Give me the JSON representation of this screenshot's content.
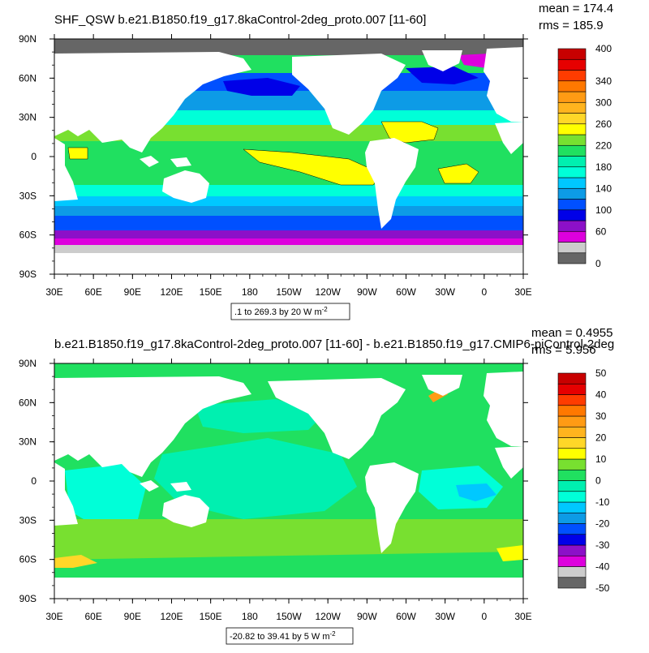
{
  "colors": {
    "land": "#ffffff",
    "ice": "#666666",
    "frame": "#000000",
    "top_palette": [
      "#666666",
      "#cccccc",
      "#dd00dd",
      "#8c10c8",
      "#0000e8",
      "#0050ff",
      "#0d9be6",
      "#00c8ff",
      "#00ffd8",
      "#00f0b0",
      "#20e060",
      "#78e030",
      "#ffff00",
      "#ffd728",
      "#ffb41e",
      "#ff9b14",
      "#ff7800",
      "#ff3c00",
      "#e60000",
      "#c80000"
    ],
    "diff_palette": [
      "#666666",
      "#cccccc",
      "#dd00dd",
      "#8c10c8",
      "#0000e8",
      "#0050ff",
      "#0d9be6",
      "#00c8ff",
      "#00ffd8",
      "#00f0b0",
      "#20e060",
      "#78e030",
      "#ffff00",
      "#ffd728",
      "#ffb41e",
      "#ff9b14",
      "#ff7800",
      "#ff3c00",
      "#e60000",
      "#c80000"
    ]
  },
  "chart_data": [
    {
      "type": "heatmap",
      "title": "SHF_QSW b.e21.B1850.f19_g17.8kaControl-2deg_proto.007 [11-60]",
      "stats": {
        "mean": "mean = 174.4",
        "rms": "rms = 185.9"
      },
      "x_ticks": [
        "30E",
        "60E",
        "90E",
        "120E",
        "150E",
        "180",
        "150W",
        "120W",
        "90W",
        "60W",
        "30W",
        "0",
        "30E"
      ],
      "y_ticks": [
        "90N",
        "60N",
        "30N",
        "0",
        "30S",
        "60S",
        "90S"
      ],
      "xlim": [
        30,
        390
      ],
      "ylim": [
        -90,
        90
      ],
      "contour_info": ".1 to 269.3 by 20  W m",
      "contour_info_sup": "-2",
      "colorbar": {
        "min": 0,
        "max": 400,
        "step": 20,
        "labels": [
          "400",
          "340",
          "300",
          "260",
          "220",
          "180",
          "140",
          "100",
          "60",
          "0"
        ]
      }
    },
    {
      "type": "heatmap",
      "title": "b.e21.B1850.f19_g17.8kaControl-2deg_proto.007 [11-60] - b.e21.B1850.f19_g17.CMIP6-piControl-2deg",
      "stats": {
        "mean": "mean = 0.4955",
        "rms": "rms = 5.956"
      },
      "x_ticks": [
        "30E",
        "60E",
        "90E",
        "120E",
        "150E",
        "180",
        "150W",
        "120W",
        "90W",
        "60W",
        "30W",
        "0",
        "30E"
      ],
      "y_ticks": [
        "90N",
        "60N",
        "30N",
        "0",
        "30S",
        "60S",
        "90S"
      ],
      "xlim": [
        30,
        390
      ],
      "ylim": [
        -90,
        90
      ],
      "contour_info": "-20.82 to 39.41 by 5  W m",
      "contour_info_sup": "-2",
      "colorbar": {
        "min": -50,
        "max": 50,
        "step": 5,
        "labels": [
          "50",
          "40",
          "30",
          "20",
          "10",
          "0",
          "-10",
          "-20",
          "-30",
          "-40",
          "-50"
        ]
      }
    }
  ]
}
